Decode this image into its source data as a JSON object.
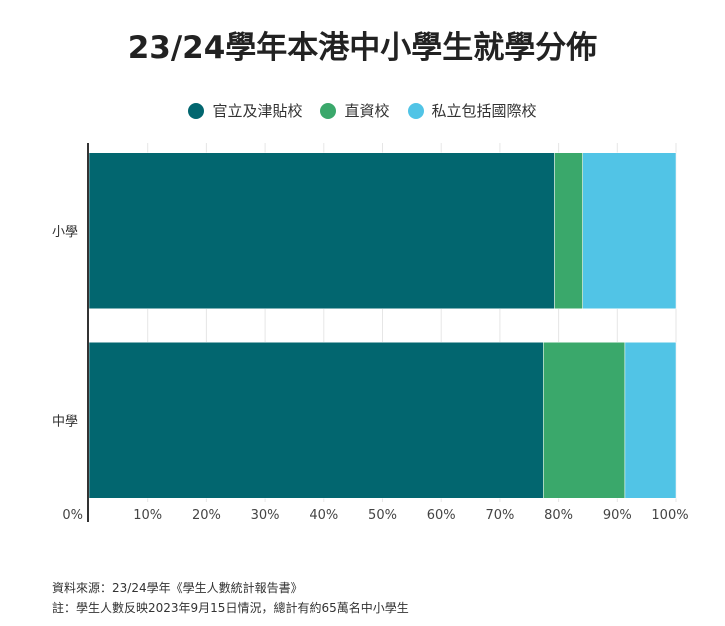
{
  "chart_data": {
    "type": "bar",
    "orientation": "horizontal",
    "stacked": true,
    "title": "23/24學年本港中小學生就學分佈",
    "categories": [
      "小學",
      "中學"
    ],
    "series": [
      {
        "name": "官立及津貼校",
        "color": "#02666f",
        "values": [
          79.3,
          77.4
        ]
      },
      {
        "name": "直資校",
        "color": "#3aa86b",
        "values": [
          4.8,
          13.9
        ]
      },
      {
        "name": "私立包括國際校",
        "color": "#51c4e6",
        "values": [
          15.9,
          8.7
        ]
      }
    ],
    "xlim": [
      0,
      100
    ],
    "x_ticks": [
      "0%",
      "10%",
      "20%",
      "30%",
      "40%",
      "50%",
      "60%",
      "70%",
      "80%",
      "90%",
      "100%"
    ],
    "grid": true,
    "legend_position": "top"
  },
  "notes": {
    "source": "資料來源：23/24學年《學生人數統計報告書》",
    "remark": "註：學生人數反映2023年9月15日情況，總計有約65萬名中小學生"
  }
}
